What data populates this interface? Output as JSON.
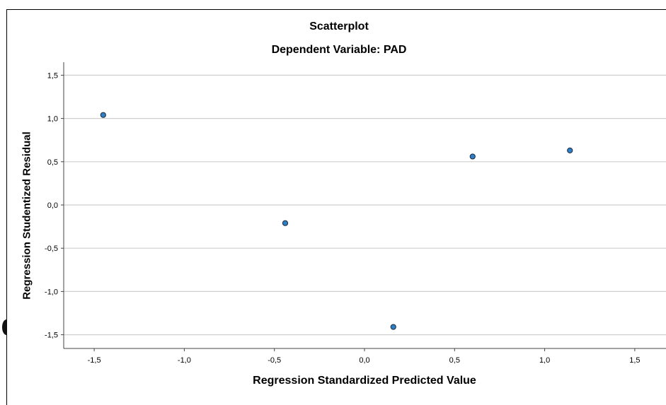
{
  "chart_data": {
    "type": "scatter",
    "title": "Scatterplot",
    "subtitle": "Dependent Variable: PAD",
    "xlabel": "Regression Standardized Predicted Value",
    "ylabel": "Regression Studentized Residual",
    "xlim": [
      -1.7,
      1.7
    ],
    "ylim": [
      -1.7,
      1.7
    ],
    "x_ticks": [
      -1.5,
      -1.0,
      -0.5,
      0.0,
      0.5,
      1.0,
      1.5
    ],
    "x_tick_labels": [
      "-1,5",
      "-1,0",
      "-0,5",
      "0,0",
      "0,5",
      "1,0",
      "1,5"
    ],
    "y_ticks": [
      1.5,
      1.0,
      0.5,
      0.0,
      -0.5,
      -1.0,
      -1.5
    ],
    "y_tick_labels": [
      "1,5",
      "1,0",
      "0,5",
      "0,0",
      "-0,5",
      "-1,0",
      "-1,5"
    ],
    "grid": "horizontal",
    "points": [
      {
        "x": -1.45,
        "y": 1.04
      },
      {
        "x": -0.44,
        "y": -0.21
      },
      {
        "x": 0.16,
        "y": -1.41
      },
      {
        "x": 0.6,
        "y": 0.56
      },
      {
        "x": 1.14,
        "y": 0.63
      }
    ],
    "colors": {
      "point_fill": "#2f7fc4",
      "point_stroke": "#1a2a40",
      "grid": "#cfcfcf",
      "axis": "#444444"
    }
  }
}
